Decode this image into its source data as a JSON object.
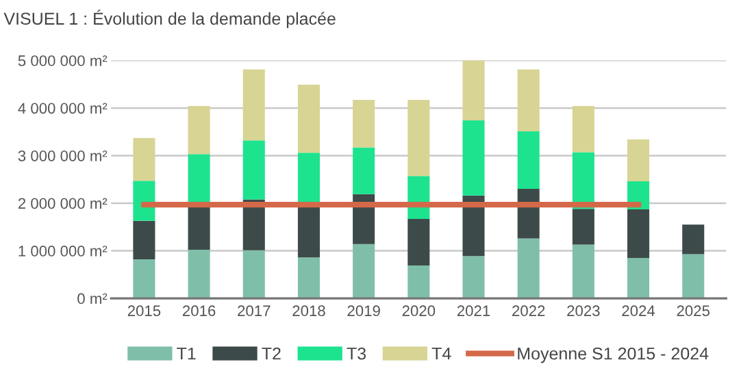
{
  "chart_data": {
    "type": "bar",
    "stacked": true,
    "title": "VISUEL 1 : Évolution de la demande placée",
    "categories": [
      "2015",
      "2016",
      "2017",
      "2018",
      "2019",
      "2020",
      "2021",
      "2022",
      "2023",
      "2024",
      "2025"
    ],
    "series": [
      {
        "name": "T1",
        "color": "#7fbfaa",
        "values": [
          820000,
          1020000,
          1010000,
          860000,
          1140000,
          690000,
          890000,
          1260000,
          1130000,
          850000,
          930000
        ]
      },
      {
        "name": "T2",
        "color": "#3d4a4a",
        "values": [
          810000,
          930000,
          1070000,
          1090000,
          1050000,
          980000,
          1270000,
          1040000,
          750000,
          1020000,
          620000
        ]
      },
      {
        "name": "T3",
        "color": "#1de38e",
        "values": [
          840000,
          1080000,
          1240000,
          1110000,
          980000,
          900000,
          1580000,
          1210000,
          1190000,
          590000,
          null
        ]
      },
      {
        "name": "T4",
        "color": "#d8d494",
        "values": [
          900000,
          1010000,
          1490000,
          1430000,
          1000000,
          1600000,
          1260000,
          1300000,
          970000,
          880000,
          null
        ]
      },
      {
        "name": "Moyenne S1 2015 - 2024",
        "type": "line",
        "color": "#d4694a",
        "values": [
          1970000,
          1970000,
          1970000,
          1970000,
          1970000,
          1970000,
          1970000,
          1970000,
          1970000,
          1970000,
          null
        ]
      }
    ],
    "ylim": [
      0,
      5000000
    ],
    "yticks": [
      {
        "value": 0,
        "label": "0 m²"
      },
      {
        "value": 1000000,
        "label": "1 000 000 m²"
      },
      {
        "value": 2000000,
        "label": "2 000 000 m²"
      },
      {
        "value": 3000000,
        "label": "3 000 000 m²"
      },
      {
        "value": 4000000,
        "label": "4 000 000 m²"
      },
      {
        "value": 5000000,
        "label": "5 000 000 m²"
      }
    ],
    "grid": "y",
    "legend": "bottom",
    "marker": "none",
    "line_style": "solid"
  }
}
